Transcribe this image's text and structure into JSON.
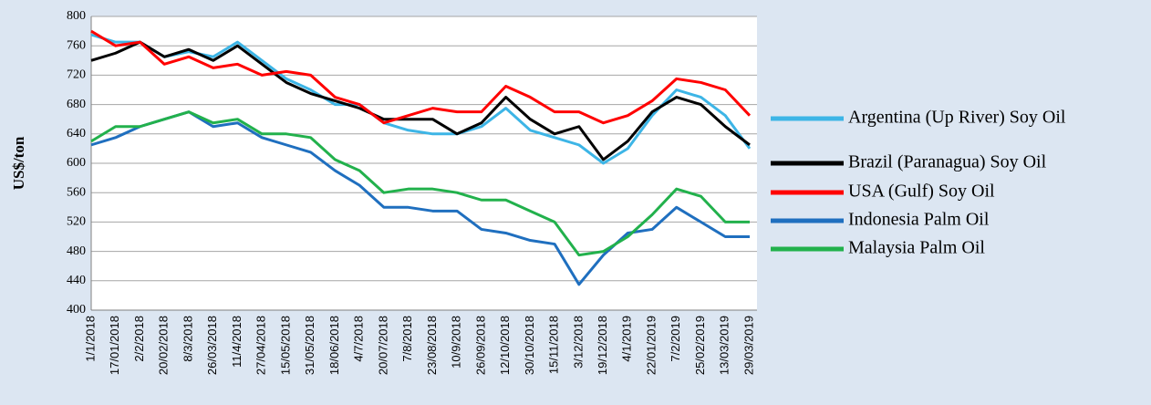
{
  "chart_data": {
    "type": "line",
    "y_label": "US$/ton",
    "categories": [
      "1/1/2018",
      "17/01/2018",
      "2/2/2018",
      "20/02/2018",
      "8/3/2018",
      "26/03/2018",
      "11/4/2018",
      "27/04/2018",
      "15/05/2018",
      "31/05/2018",
      "18/06/2018",
      "4/7/2018",
      "20/07/2018",
      "7/8/2018",
      "23/08/2018",
      "10/9/2018",
      "26/09/2018",
      "12/10/2018",
      "30/10/2018",
      "15/11/2018",
      "3/12/2018",
      "19/12/2018",
      "4/1/2019",
      "22/01/2019",
      "7/2/2019",
      "25/02/2019",
      "13/03/2019",
      "29/03/2019"
    ],
    "series": [
      {
        "name": "Argentina (Up River) Soy Oil",
        "color": "#3db5e6",
        "values": [
          775,
          765,
          765,
          745,
          752,
          745,
          765,
          740,
          715,
          700,
          680,
          680,
          655,
          645,
          640,
          640,
          650,
          675,
          645,
          635,
          625,
          600,
          620,
          665,
          700,
          690,
          665,
          620
        ]
      },
      {
        "name": "Brazil (Paranagua) Soy Oil",
        "color": "#000000",
        "values": [
          740,
          750,
          765,
          745,
          755,
          740,
          760,
          735,
          710,
          695,
          685,
          675,
          660,
          660,
          660,
          640,
          655,
          690,
          660,
          640,
          650,
          605,
          630,
          670,
          690,
          680,
          650,
          625
        ]
      },
      {
        "name": "USA (Gulf) Soy Oil",
        "color": "#ff0000",
        "values": [
          780,
          760,
          765,
          735,
          745,
          730,
          735,
          720,
          725,
          720,
          690,
          680,
          655,
          665,
          675,
          670,
          670,
          705,
          690,
          670,
          670,
          655,
          665,
          685,
          715,
          710,
          700,
          665
        ]
      },
      {
        "name": "Indonesia Palm Oil",
        "color": "#1f6fbf",
        "values": [
          625,
          635,
          650,
          660,
          670,
          650,
          655,
          635,
          625,
          615,
          590,
          570,
          540,
          540,
          535,
          535,
          510,
          505,
          495,
          490,
          435,
          475,
          505,
          510,
          540,
          520,
          500,
          500
        ]
      },
      {
        "name": "Malaysia Palm Oil",
        "color": "#22b14c",
        "values": [
          630,
          650,
          650,
          660,
          670,
          655,
          660,
          640,
          640,
          635,
          605,
          590,
          560,
          565,
          565,
          560,
          550,
          550,
          535,
          520,
          475,
          480,
          500,
          530,
          565,
          555,
          520,
          520
        ]
      }
    ],
    "ylim": [
      400,
      800
    ],
    "yticks": [
      400,
      440,
      480,
      520,
      560,
      600,
      640,
      680,
      720,
      760,
      800
    ],
    "grid": true,
    "legend": "right"
  }
}
